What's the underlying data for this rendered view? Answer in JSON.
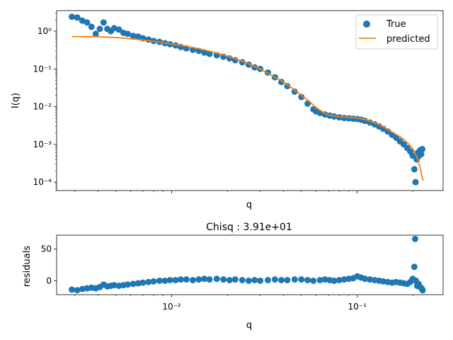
{
  "colors": {
    "true_points": "#1f77b4",
    "predicted_line": "#ff7f0e",
    "axes": "#000000",
    "background": "#ffffff"
  },
  "chart_data": [
    {
      "type": "scatter",
      "xlabel": "q",
      "ylabel": "I(q)",
      "x_scale": "log",
      "y_scale": "log",
      "xlim": [
        0.0024,
        0.29
      ],
      "ylim": [
        6e-05,
        3.5
      ],
      "yticks": [
        {
          "value": 1,
          "label": "10⁰"
        },
        {
          "value": 0.1,
          "label": "10⁻¹"
        },
        {
          "value": 0.01,
          "label": "10⁻²"
        },
        {
          "value": 0.001,
          "label": "10⁻³"
        },
        {
          "value": 0.0001,
          "label": "10⁻⁴"
        }
      ],
      "legend": {
        "placement": "top-right",
        "entries": [
          {
            "label": "True",
            "marker": "circle"
          },
          {
            "label": "predicted",
            "marker": "line"
          }
        ]
      },
      "series": [
        {
          "name": "True",
          "kind": "scatter",
          "x": [
            0.0029,
            0.0031,
            0.0033,
            0.0035,
            0.0037,
            0.0039,
            0.0041,
            0.0043,
            0.0045,
            0.0047,
            0.0049,
            0.0052,
            0.0055,
            0.0058,
            0.0062,
            0.0066,
            0.007,
            0.0075,
            0.008,
            0.0086,
            0.0092,
            0.0098,
            0.0105,
            0.0112,
            0.012,
            0.013,
            0.014,
            0.015,
            0.016,
            0.0175,
            0.019,
            0.0205,
            0.022,
            0.024,
            0.026,
            0.028,
            0.03,
            0.033,
            0.036,
            0.039,
            0.042,
            0.046,
            0.05,
            0.054,
            0.058,
            0.06,
            0.063,
            0.067,
            0.071,
            0.075,
            0.08,
            0.085,
            0.09,
            0.095,
            0.1,
            0.105,
            0.11,
            0.117,
            0.124,
            0.131,
            0.138,
            0.146,
            0.154,
            0.162,
            0.17,
            0.178,
            0.186,
            0.193,
            0.199,
            0.203,
            0.206,
            0.209,
            0.212,
            0.215,
            0.218,
            0.221,
            0.224
          ],
          "y": [
            2.4,
            2.3,
            1.9,
            1.7,
            1.3,
            0.85,
            1.15,
            1.7,
            1.15,
            1.0,
            1.2,
            1.1,
            0.9,
            0.85,
            0.75,
            0.72,
            0.65,
            0.6,
            0.55,
            0.52,
            0.48,
            0.45,
            0.42,
            0.38,
            0.35,
            0.32,
            0.3,
            0.27,
            0.25,
            0.23,
            0.21,
            0.19,
            0.17,
            0.15,
            0.13,
            0.11,
            0.1,
            0.08,
            0.06,
            0.045,
            0.035,
            0.025,
            0.018,
            0.012,
            0.0085,
            0.0075,
            0.0068,
            0.0062,
            0.0058,
            0.0055,
            0.0052,
            0.005,
            0.0049,
            0.0048,
            0.0047,
            0.0045,
            0.0042,
            0.0038,
            0.0034,
            0.003,
            0.0026,
            0.0022,
            0.0018,
            0.0015,
            0.0012,
            0.001,
            0.0008,
            0.00065,
            0.0005,
            0.00022,
            0.0001,
            0.0004,
            0.0006,
            0.0005,
            0.0007,
            0.00055,
            0.00075
          ]
        },
        {
          "name": "predicted",
          "kind": "line",
          "x": [
            0.0029,
            0.004,
            0.005,
            0.006,
            0.008,
            0.01,
            0.012,
            0.015,
            0.02,
            0.025,
            0.03,
            0.035,
            0.04,
            0.045,
            0.05,
            0.055,
            0.06,
            0.065,
            0.07,
            0.08,
            0.09,
            0.1,
            0.11,
            0.12,
            0.13,
            0.14,
            0.15,
            0.16,
            0.17,
            0.18,
            0.19,
            0.2,
            0.21,
            0.22,
            0.226
          ],
          "y": [
            0.72,
            0.71,
            0.68,
            0.63,
            0.54,
            0.46,
            0.4,
            0.32,
            0.22,
            0.15,
            0.1,
            0.065,
            0.045,
            0.03,
            0.02,
            0.014,
            0.0095,
            0.0072,
            0.006,
            0.0054,
            0.0052,
            0.005,
            0.0046,
            0.004,
            0.0034,
            0.0028,
            0.0023,
            0.0019,
            0.0016,
            0.0013,
            0.001,
            0.00075,
            0.00045,
            0.0002,
            0.00011
          ]
        }
      ]
    },
    {
      "type": "scatter",
      "title": "Chisq : 3.91e+01",
      "xlabel": "q",
      "ylabel": "residuals",
      "x_scale": "log",
      "y_scale": "linear",
      "xlim": [
        0.0024,
        0.29
      ],
      "ylim": [
        -22,
        72
      ],
      "yticks": [
        {
          "value": 0,
          "label": "0"
        },
        {
          "value": 50,
          "label": "50"
        }
      ],
      "xticks": [
        {
          "value": 0.01,
          "label": "10⁻²"
        },
        {
          "value": 0.1,
          "label": "10⁻¹"
        }
      ],
      "series": [
        {
          "name": "residuals",
          "kind": "scatter",
          "x": [
            0.0029,
            0.0031,
            0.0033,
            0.0035,
            0.0037,
            0.0039,
            0.0041,
            0.0043,
            0.0045,
            0.0047,
            0.0049,
            0.0052,
            0.0055,
            0.0058,
            0.0062,
            0.0066,
            0.007,
            0.0075,
            0.008,
            0.0086,
            0.0092,
            0.0098,
            0.0105,
            0.0112,
            0.012,
            0.013,
            0.014,
            0.015,
            0.016,
            0.0175,
            0.019,
            0.0205,
            0.022,
            0.024,
            0.026,
            0.028,
            0.03,
            0.033,
            0.036,
            0.039,
            0.042,
            0.046,
            0.05,
            0.054,
            0.058,
            0.063,
            0.067,
            0.071,
            0.075,
            0.08,
            0.085,
            0.09,
            0.095,
            0.1,
            0.105,
            0.11,
            0.117,
            0.124,
            0.131,
            0.138,
            0.146,
            0.154,
            0.162,
            0.17,
            0.178,
            0.186,
            0.193,
            0.199,
            0.203,
            0.205,
            0.207,
            0.21,
            0.214,
            0.218,
            0.222,
            0.225
          ],
          "y": [
            -14,
            -15,
            -13,
            -12,
            -11,
            -12,
            -10,
            -6,
            -9,
            -8,
            -7,
            -8,
            -7,
            -6,
            -5,
            -4,
            -3,
            -2,
            -1,
            0,
            0,
            1,
            1,
            2,
            2,
            1,
            2,
            3,
            2,
            3,
            2,
            1,
            2,
            1,
            0,
            1,
            0,
            1,
            2,
            1,
            1,
            2,
            2,
            1,
            0,
            1,
            2,
            1,
            0,
            1,
            2,
            3,
            4,
            7,
            5,
            3,
            2,
            1,
            0,
            -1,
            -2,
            -3,
            -2,
            -3,
            -4,
            -5,
            -2,
            3,
            22,
            66,
            0,
            -8,
            -5,
            -10,
            -12,
            -15
          ]
        }
      ]
    }
  ]
}
